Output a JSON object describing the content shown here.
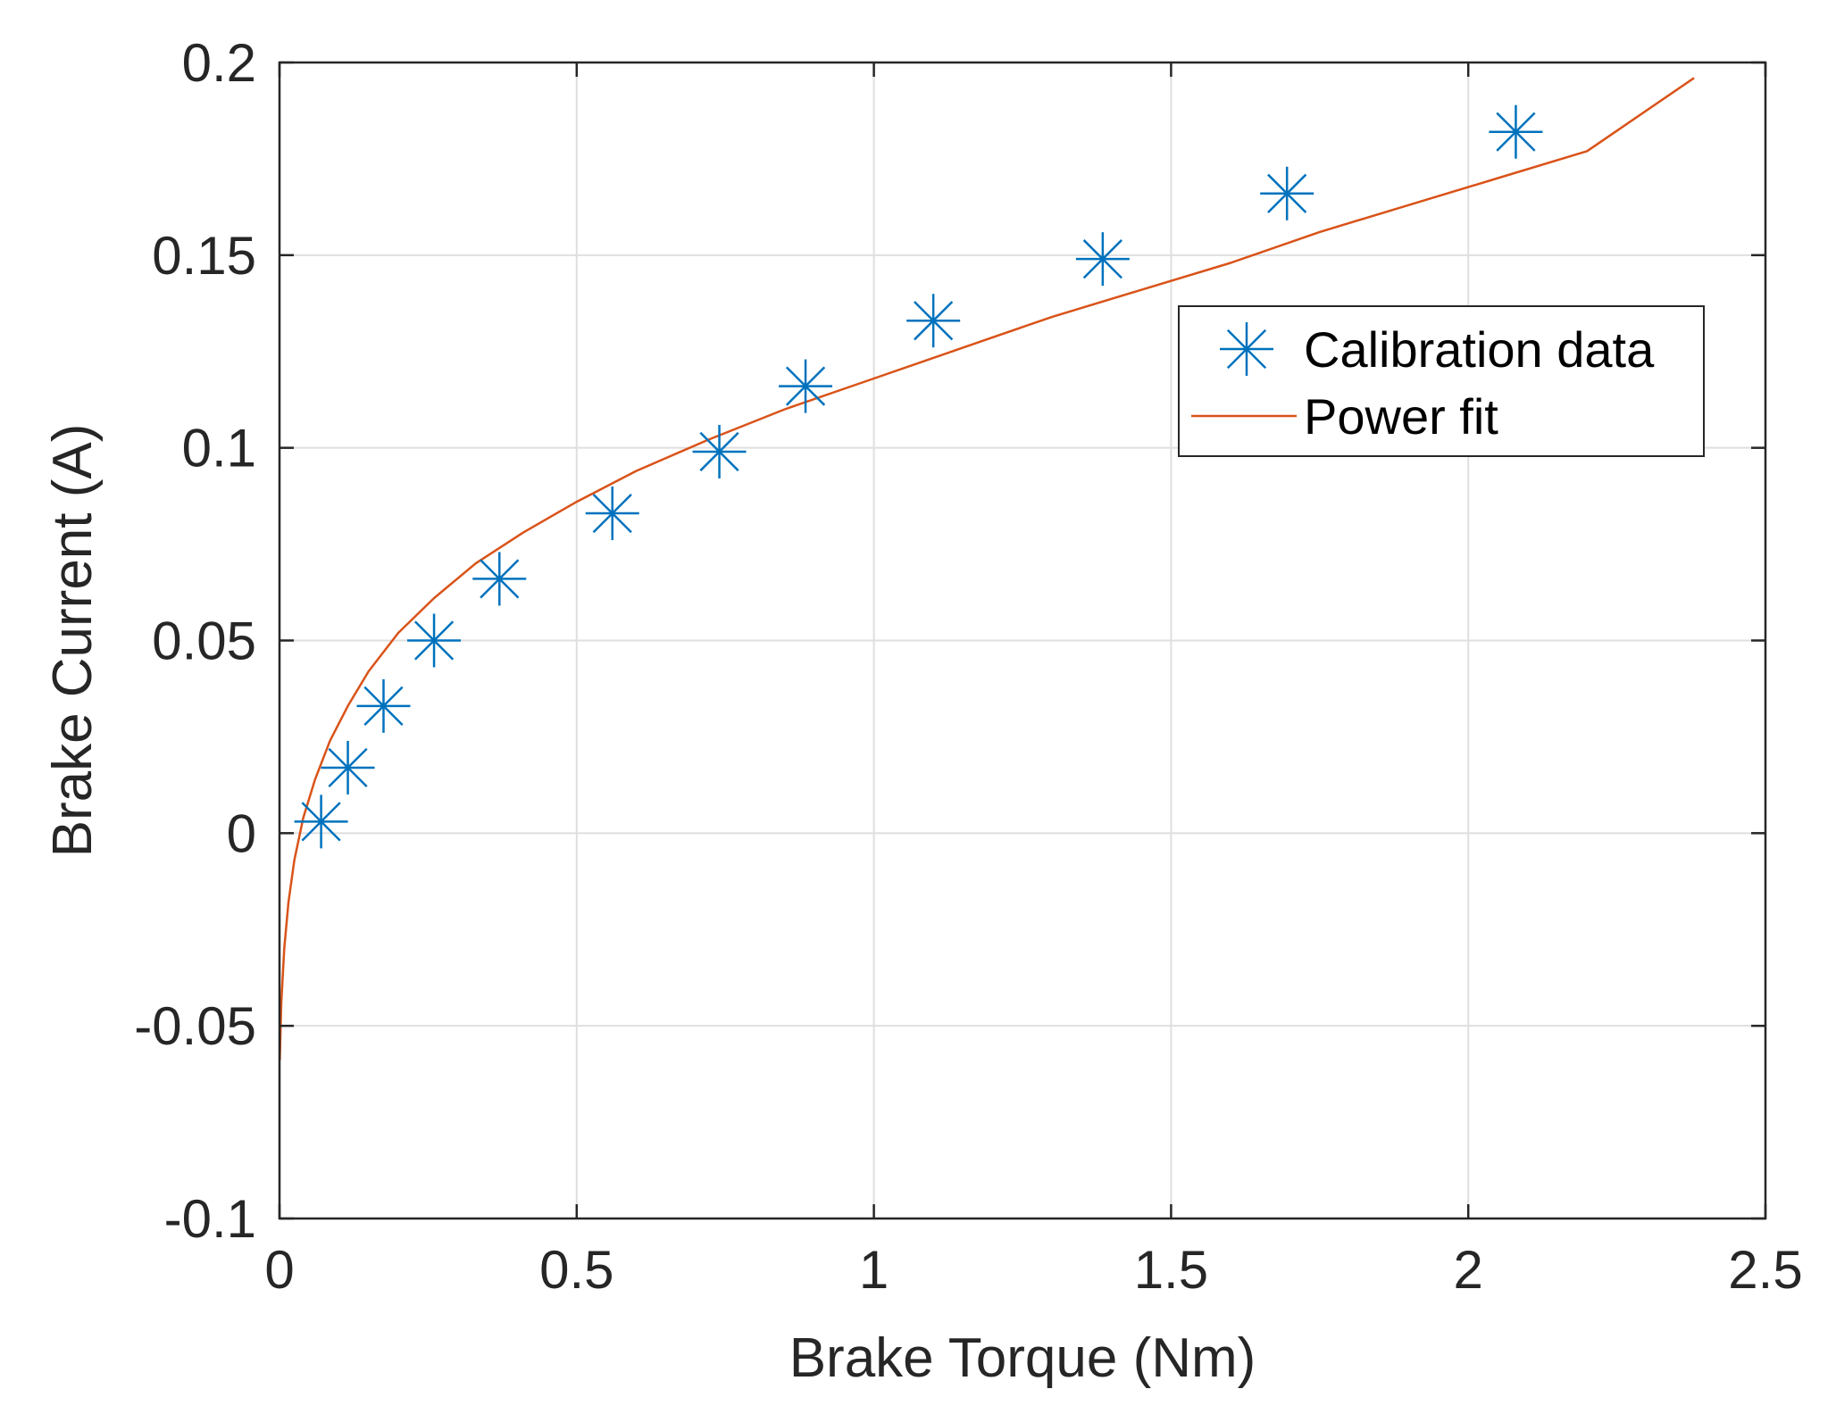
{
  "chart_data": {
    "type": "scatter",
    "xlabel": "Brake Torque (Nm)",
    "ylabel": "Brake Current (A)",
    "xlim": [
      0,
      2.5
    ],
    "ylim": [
      -0.1,
      0.2
    ],
    "xticks": [
      0,
      0.5,
      1,
      1.5,
      2,
      2.5
    ],
    "yticks": [
      -0.1,
      -0.05,
      0,
      0.05,
      0.1,
      0.15,
      0.2
    ],
    "xtick_labels": [
      "0",
      "0.5",
      "1",
      "1.5",
      "2",
      "2.5"
    ],
    "ytick_labels": [
      "-0.1",
      "-0.05",
      "0",
      "0.05",
      "0.1",
      "0.15",
      "0.2"
    ],
    "grid": true,
    "legend_position": "top-right",
    "series": [
      {
        "name": "Calibration data",
        "kind": "scatter",
        "marker": "asterisk",
        "color": "#0072BD",
        "x": [
          0.07,
          0.115,
          0.175,
          0.26,
          0.37,
          0.56,
          0.74,
          0.885,
          1.1,
          1.385,
          1.695,
          2.08
        ],
        "y": [
          0.003,
          0.017,
          0.033,
          0.05,
          0.066,
          0.083,
          0.099,
          0.116,
          0.133,
          0.149,
          0.166,
          0.182
        ]
      },
      {
        "name": "Power fit",
        "kind": "line",
        "color": "#D95319",
        "x": [
          0.0005,
          0.003,
          0.008,
          0.015,
          0.025,
          0.04,
          0.06,
          0.085,
          0.115,
          0.15,
          0.2,
          0.26,
          0.33,
          0.41,
          0.5,
          0.6,
          0.72,
          0.85,
          1.0,
          1.15,
          1.3,
          1.45,
          1.6,
          1.75,
          1.9,
          2.05,
          2.2,
          2.38
        ],
        "y": [
          -0.059,
          -0.044,
          -0.03,
          -0.018,
          -0.007,
          0.004,
          0.014,
          0.024,
          0.033,
          0.042,
          0.052,
          0.061,
          0.07,
          0.078,
          0.086,
          0.094,
          0.102,
          0.11,
          0.118,
          0.126,
          0.134,
          0.141,
          0.148,
          0.156,
          0.163,
          0.17,
          0.177,
          0.196
        ]
      }
    ]
  }
}
